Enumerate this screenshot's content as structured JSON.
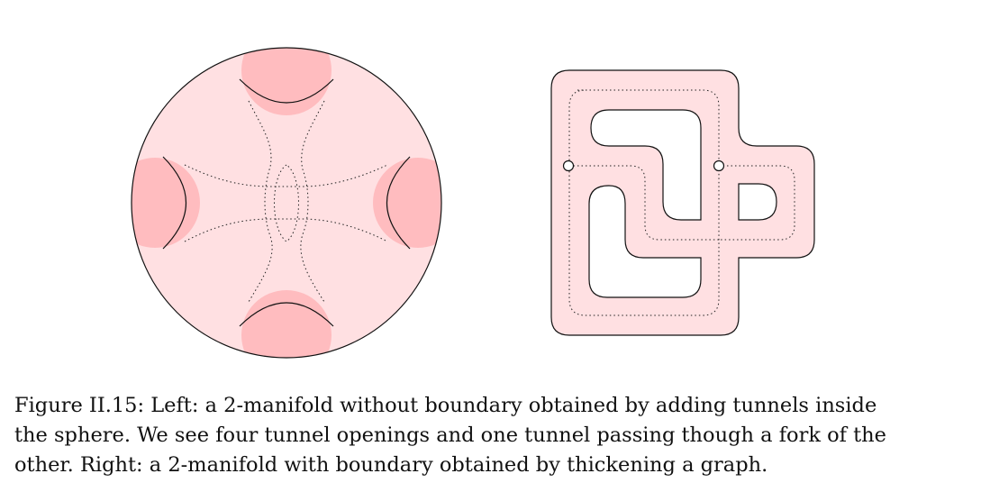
{
  "figure": {
    "colors": {
      "fill": "#ffe0e2",
      "opening": "#ffbcbf",
      "stroke": "#111111"
    }
  },
  "caption": {
    "lines": [
      "Figure II.15: Left: a 2-manifold without boundary obtained by adding tunnels inside",
      "the sphere. We see four tunnel openings and one tunnel passing though a fork of the",
      "other. Right: a 2-manifold with boundary obtained by thickening a graph."
    ]
  }
}
